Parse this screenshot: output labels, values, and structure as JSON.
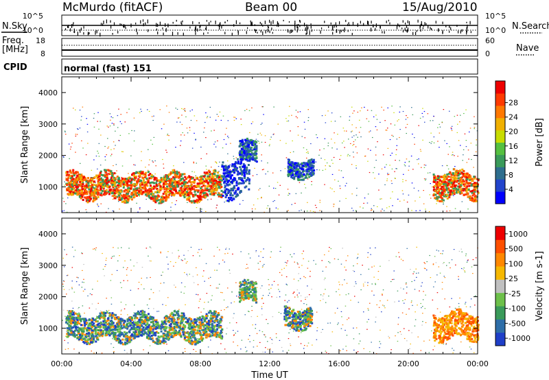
{
  "header": {
    "station": "McMurdo (fitACF)",
    "beam": "Beam 00",
    "date": "15/Aug/2010"
  },
  "side_labels": {
    "nsky": "N.Sky",
    "freq": "Freq.",
    "freq_unit": "[MHz]",
    "cpid": "CPID",
    "nsearch": "N.Search",
    "nave": "Nave"
  },
  "cpid_text": "normal (fast) 151",
  "small_axes": {
    "nsky_ticks": [
      "10^5",
      "10^0"
    ],
    "nsearch_ticks": [
      "10^5",
      "10^0"
    ],
    "freq_ticks": [
      "18",
      "8"
    ],
    "nave_ticks": [
      "60",
      "0"
    ]
  },
  "chart_data": [
    {
      "type": "heatmap",
      "title": "",
      "xlabel": "",
      "ylabel": "Slant Range [km]",
      "xlim": [
        0,
        24
      ],
      "ylim": [
        180,
        4500
      ],
      "yticks": [
        "1000",
        "2000",
        "3000",
        "4000"
      ],
      "colorbar": {
        "label": "Power [dB]",
        "ticks": [
          "4",
          "8",
          "12",
          "16",
          "20",
          "24",
          "28"
        ],
        "colors": [
          "#0000ff",
          "#2244cc",
          "#2e6e8e",
          "#3a9a5a",
          "#55c040",
          "#c8dc00",
          "#f0b000",
          "#ff7800",
          "#ff3a00",
          "#ee0000"
        ]
      },
      "echo_regions": [
        {
          "t0": 0.2,
          "t1": 9.2,
          "r0": 600,
          "r1": 1500,
          "level": "strong"
        },
        {
          "t0": 9.2,
          "t1": 10.8,
          "r0": 700,
          "r1": 2000,
          "level": "weak"
        },
        {
          "t0": 10.2,
          "t1": 11.2,
          "r0": 1800,
          "r1": 2500,
          "level": "medium"
        },
        {
          "t0": 13.0,
          "t1": 14.5,
          "r0": 1300,
          "r1": 1900,
          "level": "medium"
        },
        {
          "t0": 21.4,
          "t1": 24.0,
          "r0": 650,
          "r1": 1550,
          "level": "strong"
        }
      ]
    },
    {
      "type": "heatmap",
      "title": "",
      "xlabel": "Time UT",
      "ylabel": "Slant Range [km]",
      "xlim": [
        0,
        24
      ],
      "ylim": [
        180,
        4500
      ],
      "xticks": [
        "00:00",
        "04:00",
        "08:00",
        "12:00",
        "16:00",
        "20:00",
        "00:00"
      ],
      "yticks": [
        "1000",
        "2000",
        "3000",
        "4000"
      ],
      "colorbar": {
        "label": "Velocity [m s-1]",
        "ticks": [
          "1000",
          "500",
          "100",
          "25",
          "-25",
          "-100",
          "-500",
          "-1000"
        ],
        "colors": [
          "#1f3fc8",
          "#2e6ea8",
          "#3a9a5a",
          "#6dc04a",
          "#c0c0c0",
          "#f6b800",
          "#ff8800",
          "#ff5000",
          "#ee0000"
        ]
      },
      "echo_regions": [
        {
          "t0": 0.2,
          "t1": 9.2,
          "r0": 600,
          "r1": 1500,
          "direction": "toward"
        },
        {
          "t0": 10.2,
          "t1": 11.2,
          "r0": 1800,
          "r1": 2500,
          "direction": "mixed"
        },
        {
          "t0": 12.8,
          "t1": 14.4,
          "r0": 1000,
          "r1": 1700,
          "direction": "toward"
        },
        {
          "t0": 21.4,
          "t1": 24.0,
          "r0": 650,
          "r1": 1550,
          "direction": "away"
        }
      ]
    }
  ],
  "colors": {
    "strong_power": "#ff3a00",
    "away_velocity": "#ff8800"
  }
}
